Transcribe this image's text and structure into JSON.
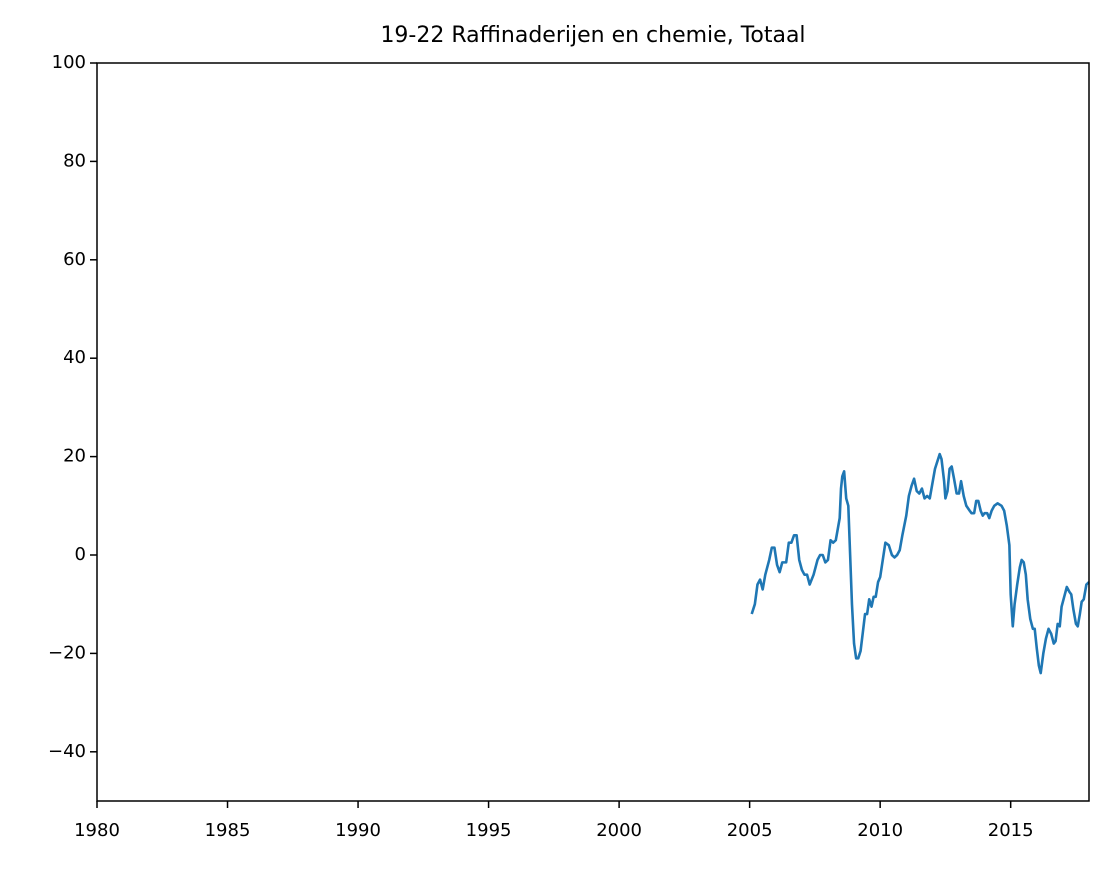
{
  "chart_data": {
    "type": "line",
    "title": "19-22 Raffinaderijen en chemie, Totaal",
    "x": [
      2005.08,
      2005.2,
      2005.3,
      2005.4,
      2005.5,
      2005.6,
      2005.75,
      2005.85,
      2005.95,
      2006.05,
      2006.15,
      2006.25,
      2006.4,
      2006.5,
      2006.6,
      2006.7,
      2006.8,
      2006.9,
      2007.0,
      2007.1,
      2007.2,
      2007.3,
      2007.45,
      2007.6,
      2007.7,
      2007.8,
      2007.9,
      2008.0,
      2008.1,
      2008.2,
      2008.3,
      2008.4,
      2008.45,
      2008.5,
      2008.55,
      2008.62,
      2008.7,
      2008.78,
      2008.85,
      2008.92,
      2009.0,
      2009.08,
      2009.16,
      2009.25,
      2009.33,
      2009.42,
      2009.5,
      2009.58,
      2009.67,
      2009.75,
      2009.83,
      2009.92,
      2010.0,
      2010.1,
      2010.2,
      2010.33,
      2010.45,
      2010.55,
      2010.65,
      2010.75,
      2010.85,
      2011.0,
      2011.1,
      2011.2,
      2011.3,
      2011.4,
      2011.5,
      2011.6,
      2011.7,
      2011.8,
      2011.9,
      2012.0,
      2012.1,
      2012.28,
      2012.35,
      2012.45,
      2012.5,
      2012.58,
      2012.66,
      2012.74,
      2012.83,
      2012.93,
      2013.02,
      2013.1,
      2013.2,
      2013.3,
      2013.43,
      2013.5,
      2013.6,
      2013.68,
      2013.76,
      2013.85,
      2013.93,
      2014.0,
      2014.1,
      2014.18,
      2014.27,
      2014.37,
      2014.5,
      2014.65,
      2014.75,
      2014.85,
      2014.95,
      2015.0,
      2015.08,
      2015.15,
      2015.25,
      2015.35,
      2015.42,
      2015.5,
      2015.58,
      2015.65,
      2015.75,
      2015.85,
      2015.92,
      2016.0,
      2016.08,
      2016.15,
      2016.25,
      2016.35,
      2016.45,
      2016.55,
      2016.65,
      2016.72,
      2016.8,
      2016.88,
      2016.95,
      2017.05,
      2017.15,
      2017.25,
      2017.32,
      2017.4,
      2017.5,
      2017.57,
      2017.65,
      2017.72,
      2017.8,
      2017.9,
      2018.0
    ],
    "series": [
      {
        "color": "#1f77b4",
        "values": [
          -12,
          -10,
          -6,
          -5,
          -7,
          -4,
          -1,
          1.5,
          1.5,
          -2,
          -3.5,
          -1.5,
          -1.5,
          2.5,
          2.5,
          4,
          4,
          -1,
          -3,
          -4,
          -4,
          -6,
          -4,
          -1,
          0,
          0,
          -1.5,
          -1,
          3,
          2.5,
          3,
          6,
          7.5,
          13.5,
          16,
          17,
          11.5,
          10,
          0,
          -10,
          -18,
          -21,
          -21,
          -19.5,
          -16,
          -12,
          -12,
          -9,
          -10.5,
          -8.5,
          -8.5,
          -5.5,
          -4.5,
          -1,
          2.5,
          2,
          0,
          -0.5,
          0,
          1,
          4,
          8,
          12,
          14,
          15.5,
          13,
          12.5,
          13.5,
          11.5,
          12,
          11.5,
          14.5,
          17.5,
          20.5,
          19.5,
          15,
          11.5,
          13,
          17.5,
          18,
          15.5,
          12.5,
          12.5,
          15,
          12,
          10,
          9,
          8.5,
          8.5,
          11,
          11,
          9,
          8,
          8.5,
          8.5,
          7.5,
          9,
          10,
          10.5,
          10,
          9,
          6,
          2,
          -8,
          -14.5,
          -10,
          -6,
          -2.5,
          -1,
          -1.5,
          -4,
          -9,
          -13,
          -15,
          -15,
          -19,
          -22.5,
          -24,
          -20,
          -17,
          -15,
          -16,
          -18,
          -17.5,
          -14,
          -14.5,
          -10.5,
          -8.5,
          -6.5,
          -7.5,
          -8,
          -11,
          -14,
          -14.5,
          -12,
          -9.5,
          -9,
          -6,
          -5.5
        ]
      }
    ],
    "xlim": [
      1980,
      2018
    ],
    "xticks": [
      1980,
      1985,
      1990,
      1995,
      2000,
      2005,
      2010,
      2015
    ],
    "ylim": [
      -50,
      100
    ],
    "yticks": [
      {
        "value": -40,
        "label": "−40"
      },
      {
        "value": -20,
        "label": "−20"
      },
      0,
      20,
      40,
      60,
      80,
      100
    ],
    "grid": false
  }
}
